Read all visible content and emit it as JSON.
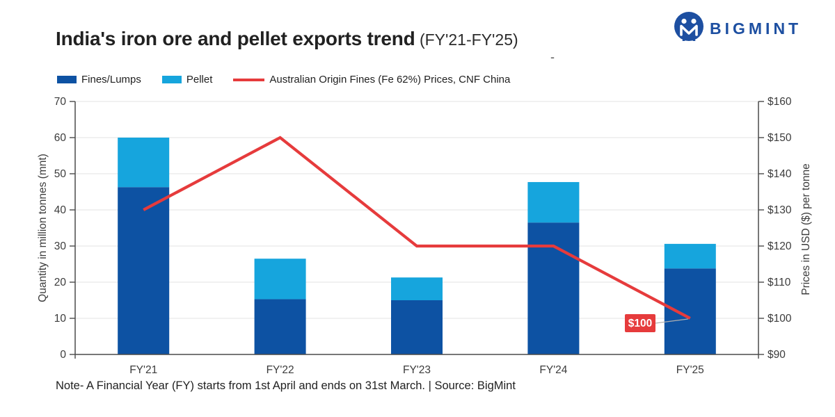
{
  "header": {
    "title": "India's iron ore and pellet exports trend",
    "title_suffix": " (FY'21-FY'25)",
    "stray_dash": "-",
    "brand": "BIGMINT"
  },
  "colors": {
    "fines_lumps": "#0d52a3",
    "pellet": "#16a5dd",
    "price_line": "#e63b3c",
    "brand_blue": "#1d4fa1",
    "axis_line": "#4a4a4a",
    "grid_line": "#e3e3e3",
    "axis_text": "#3b3b3b",
    "annotation_bg": "#e63b3c",
    "annotation_text": "#ffffff",
    "leader_line": "#b0b0b0"
  },
  "legend": [
    {
      "label": "Fines/Lumps",
      "color": "#0d52a3",
      "type": "box"
    },
    {
      "label": "Pellet",
      "color": "#16a5dd",
      "type": "box"
    },
    {
      "label": "Australian Origin Fines (Fe 62%) Prices, CNF China",
      "color": "#e63b3c",
      "type": "line"
    }
  ],
  "chart_data": {
    "type": "bar",
    "subtype": "stacked-bars-with-line",
    "categories": [
      "FY'21",
      "FY'22",
      "FY'23",
      "FY'24",
      "FY'25"
    ],
    "series": [
      {
        "name": "Fines/Lumps",
        "type": "bar",
        "stack": true,
        "color": "#0d52a3",
        "values": [
          46.3,
          15.3,
          15.0,
          36.5,
          23.8
        ]
      },
      {
        "name": "Pellet",
        "type": "bar",
        "stack": true,
        "color": "#16a5dd",
        "values": [
          13.7,
          11.2,
          6.3,
          11.2,
          6.8
        ]
      },
      {
        "name": "Australian Origin Fines (Fe 62%) Prices, CNF China",
        "type": "line",
        "axis": "right",
        "color": "#e63b3c",
        "values": [
          130,
          150,
          120,
          120,
          100
        ]
      }
    ],
    "left_axis": {
      "label": "Quantity in million tonnes (mnt)",
      "min": 0,
      "max": 70,
      "step": 10
    },
    "right_axis": {
      "label": "Prices in USD ($) per tonne",
      "min": 90,
      "max": 160,
      "step": 10,
      "prefix": "$"
    },
    "annotation": {
      "text": "$100",
      "category_index": 4,
      "value": 100
    },
    "grid": true,
    "legend_position": "top-left"
  },
  "footer": {
    "note": "Note- A Financial Year (FY) starts from 1st April and ends on 31st March. | Source: BigMint"
  }
}
